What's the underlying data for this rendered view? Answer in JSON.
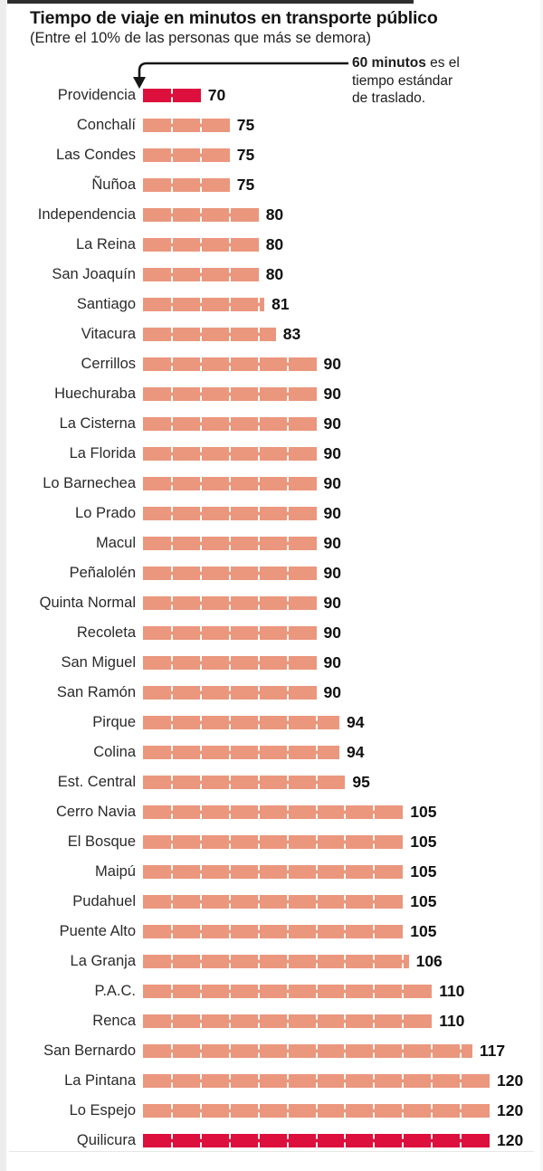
{
  "page": {
    "background_color": "#ffffff",
    "left_edge_color": "#ededed",
    "top_strip_color": "#2e2e2e",
    "bottom_rule_color": "#e7e7e7"
  },
  "header": {
    "title": "Tiempo de viaje en minutos en transporte público",
    "subtitle": "(Entre el 10% de las personas que más se demora)"
  },
  "annotation": {
    "bold_text": "60 minutos",
    "after_bold": " es el",
    "line2": "tiempo estándar",
    "line3": "de traslado."
  },
  "chart_data": {
    "type": "bar",
    "orientation": "horizontal",
    "title": "Tiempo de viaje en minutos en transporte público",
    "subtitle": "(Entre el 10% de las personas que más se demora)",
    "annotation": "60 minutos es el tiempo estándar de traslado.",
    "x_baseline": 60,
    "xlim": [
      60,
      120
    ],
    "tick_interval_minutes": 5,
    "separator_style": "white dashed vertical line every 5 minutes",
    "bar_color": "#ea977e",
    "highlight_color": "#dc0f3d",
    "highlight_indices": [
      0,
      35
    ],
    "categories": [
      "Providencia",
      "Conchalí",
      "Las Condes",
      "Ñuñoa",
      "Independencia",
      "La Reina",
      "San Joaquín",
      "Santiago",
      "Vitacura",
      "Cerrillos",
      "Huechuraba",
      "La Cisterna",
      "La Florida",
      "Lo Barnechea",
      "Lo Prado",
      "Macul",
      "Peñalolén",
      "Quinta Normal",
      "Recoleta",
      "San Miguel",
      "San Ramón",
      "Pirque",
      "Colina",
      "Est. Central",
      "Cerro Navia",
      "El Bosque",
      "Maipú",
      "Pudahuel",
      "Puente Alto",
      "La Granja",
      "P.A.C.",
      "Renca",
      "San Bernardo",
      "La Pintana",
      "Lo Espejo",
      "Quilicura"
    ],
    "values": [
      70,
      75,
      75,
      75,
      80,
      80,
      80,
      81,
      83,
      90,
      90,
      90,
      90,
      90,
      90,
      90,
      90,
      90,
      90,
      90,
      90,
      94,
      94,
      95,
      105,
      105,
      105,
      105,
      105,
      106,
      110,
      110,
      117,
      120,
      120,
      120
    ]
  }
}
